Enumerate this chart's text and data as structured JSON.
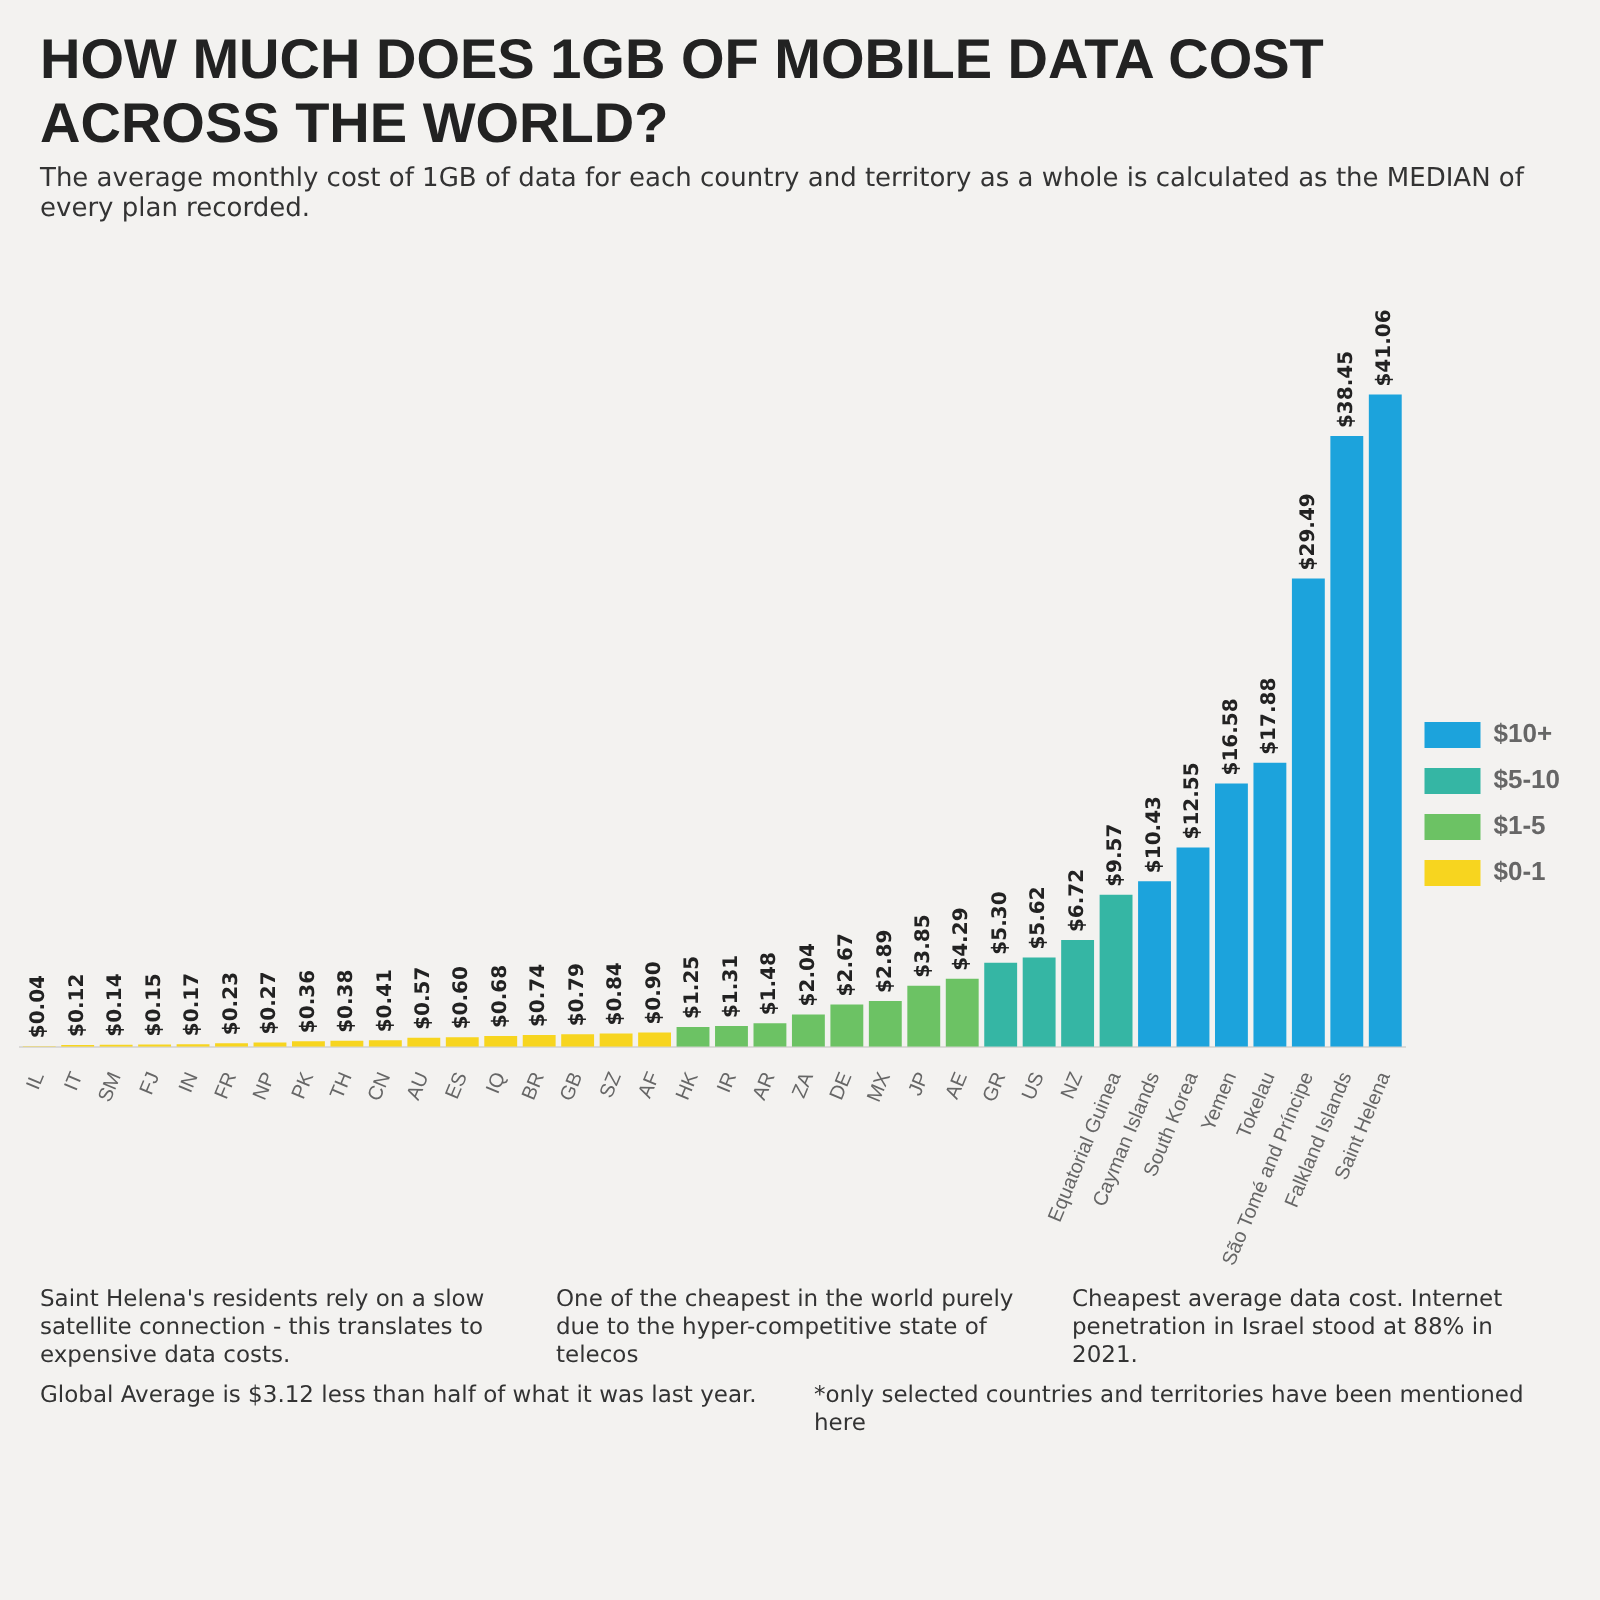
{
  "chart_data": {
    "type": "bar",
    "title": "HOW MUCH DOES 1GB OF MOBILE DATA COST ACROSS THE WORLD?",
    "subtitle": "The average monthly cost of 1GB of data for each country and territory as a whole is calculated as the MEDIAN of every plan recorded.",
    "categories": [
      "IL",
      "IT",
      "SM",
      "FJ",
      "IN",
      "FR",
      "NP",
      "PK",
      "TH",
      "CN",
      "AU",
      "ES",
      "IQ",
      "BR",
      "GB",
      "SZ",
      "AF",
      "HK",
      "IR",
      "AR",
      "ZA",
      "DE",
      "MX",
      "JP",
      "AE",
      "GR",
      "US",
      "NZ",
      "Equatorial Guinea",
      "Cayman Islands",
      "South Korea",
      "Yemen",
      "Tokelau",
      "São Tomé and Príncipe",
      "Falkland Islands",
      "Saint Helena"
    ],
    "stacked": true,
    "tick_labels": "x",
    "legend": "right",
    "series": [
      {
        "name": "$10+",
        "color": "#1ca3dc",
        "values": [
          null,
          null,
          null,
          null,
          null,
          null,
          null,
          null,
          null,
          null,
          null,
          null,
          null,
          null,
          null,
          null,
          null,
          null,
          null,
          null,
          null,
          null,
          null,
          null,
          null,
          null,
          null,
          null,
          null,
          10.43,
          12.55,
          16.58,
          17.88,
          29.49,
          38.45,
          41.06
        ],
        "value_labels": [
          null,
          null,
          null,
          null,
          null,
          null,
          null,
          null,
          null,
          null,
          null,
          null,
          null,
          null,
          null,
          null,
          null,
          null,
          null,
          null,
          null,
          null,
          null,
          null,
          null,
          null,
          null,
          null,
          null,
          "$10.43",
          "$12.55",
          "$16.58",
          "$17.88",
          "$29.49",
          "$38.45",
          "$41.06"
        ]
      },
      {
        "name": "$5-10",
        "color": "#35b6a4",
        "values": [
          null,
          null,
          null,
          null,
          null,
          null,
          null,
          null,
          null,
          null,
          null,
          null,
          null,
          null,
          null,
          null,
          null,
          null,
          null,
          null,
          null,
          null,
          null,
          null,
          null,
          5.3,
          5.62,
          6.72,
          9.57,
          null,
          null,
          null,
          null,
          null,
          null,
          null
        ],
        "value_labels": [
          null,
          null,
          null,
          null,
          null,
          null,
          null,
          null,
          null,
          null,
          null,
          null,
          null,
          null,
          null,
          null,
          null,
          null,
          null,
          null,
          null,
          null,
          null,
          null,
          null,
          "$5.30",
          "$5.62",
          "$6.72",
          "$9.57",
          null,
          null,
          null,
          null,
          null,
          null,
          null
        ]
      },
      {
        "name": "$1-5",
        "color": "#6cc264",
        "values": [
          null,
          null,
          null,
          null,
          null,
          null,
          null,
          null,
          null,
          null,
          null,
          null,
          null,
          null,
          null,
          null,
          null,
          1.25,
          1.31,
          1.48,
          2.04,
          2.67,
          2.89,
          3.85,
          4.29,
          null,
          null,
          null,
          null,
          null,
          null,
          null,
          null,
          null,
          null,
          null
        ],
        "value_labels": [
          null,
          null,
          null,
          null,
          null,
          null,
          null,
          null,
          null,
          null,
          null,
          null,
          null,
          null,
          null,
          null,
          null,
          "$1.25",
          "$1.31",
          "$1.48",
          "$2.04",
          "$2.67",
          "$2.89",
          "$3.85",
          "$4.29",
          null,
          null,
          null,
          null,
          null,
          null,
          null,
          null,
          null,
          null,
          null
        ]
      },
      {
        "name": "$0-1",
        "color": "#f7d51f",
        "values": [
          0.04,
          0.12,
          0.14,
          0.15,
          0.17,
          0.23,
          0.27,
          0.36,
          0.38,
          0.41,
          0.57,
          0.6,
          0.68,
          0.74,
          0.79,
          0.84,
          0.9,
          null,
          null,
          null,
          null,
          null,
          null,
          null,
          null,
          null,
          null,
          null,
          null,
          null,
          null,
          null,
          null,
          null,
          null,
          null
        ],
        "value_labels": [
          "$0.04",
          "$0.12",
          "$0.14",
          "$0.15",
          "$0.17",
          "$0.23",
          "$0.27",
          "$0.36",
          "$0.38",
          "$0.41",
          "$0.57",
          "$0.60",
          "$0.68",
          "$0.74",
          "$0.79",
          "$0.84",
          "$0.90",
          null,
          null,
          null,
          null,
          null,
          null,
          null,
          null,
          null,
          null,
          null,
          null,
          null,
          null,
          null,
          null,
          null,
          null,
          null
        ]
      }
    ],
    "annotations": [
      "Saint Helena's residents rely on a slow satellite connection - this translates to expensive data costs.",
      "One of the cheapest in the world purely due to the hyper-competitive state of telecos",
      "Cheapest average data cost. Internet penetration in Israel stood at 88% in 2021.",
      "Global Average is $3.12 less than half of what it was last year.",
      "*only selected countries and territories have been mentioned here"
    ]
  }
}
